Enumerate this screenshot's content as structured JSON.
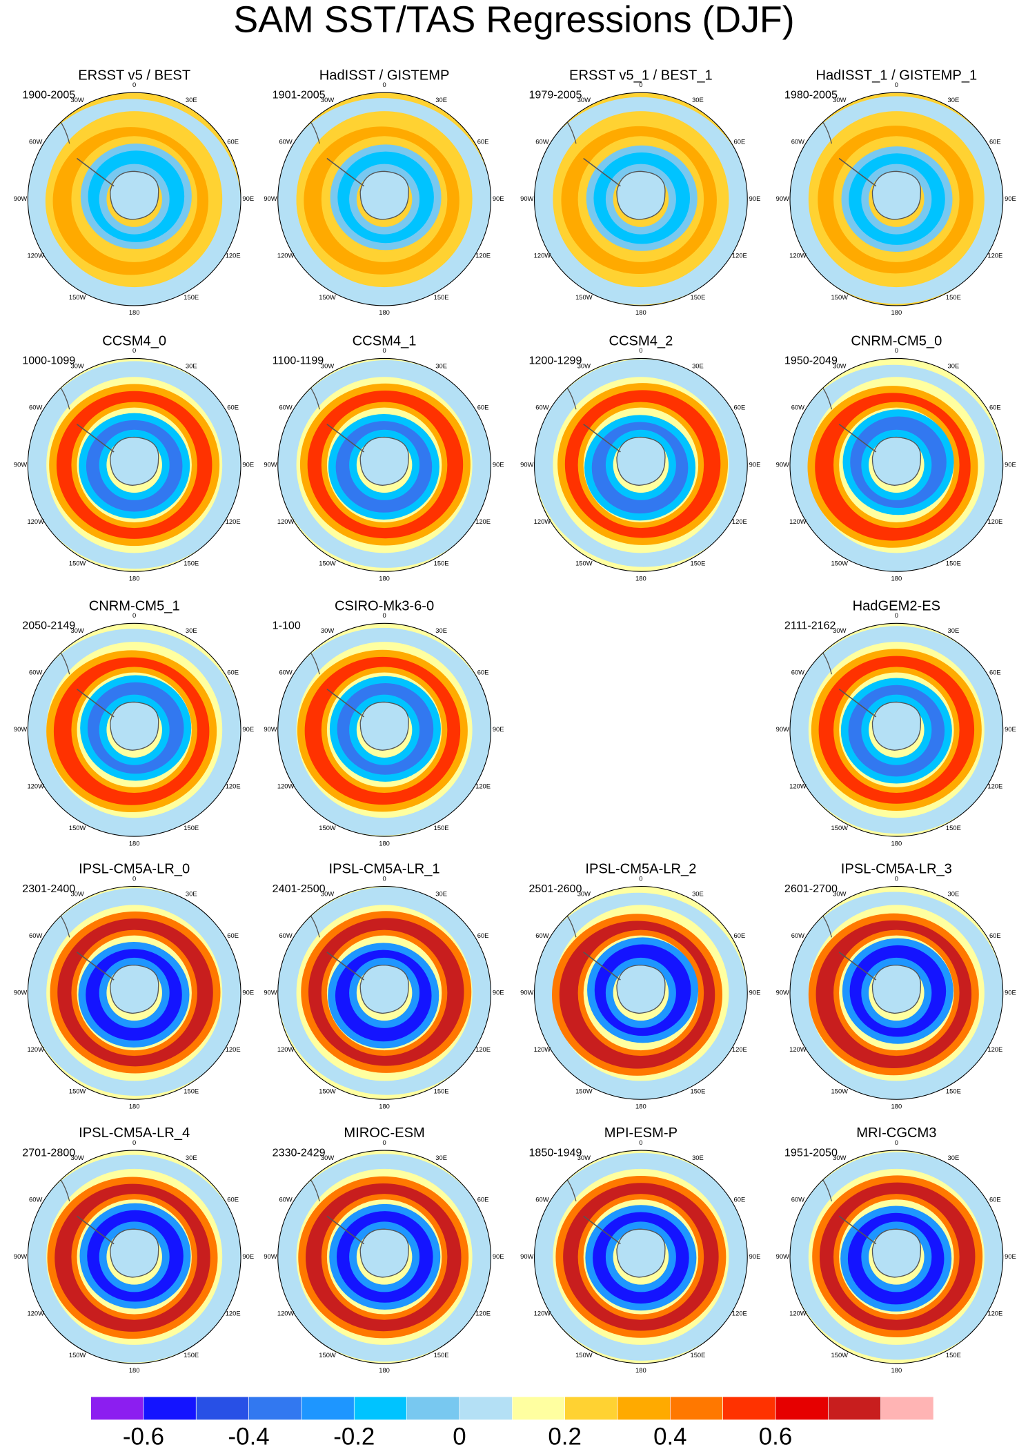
{
  "title": "SAM SST/TAS Regressions (DJF)",
  "lon_labels": [
    "0",
    "30E",
    "60E",
    "90E",
    "120E",
    "150E",
    "180",
    "150W",
    "120W",
    "90W",
    "60W",
    "30W"
  ],
  "rows": [
    [
      {
        "name": "ERSST v5 / BEST",
        "period": "1900-2005"
      },
      {
        "name": "HadISST / GISTEMP",
        "period": "1901-2005"
      },
      {
        "name": "ERSST v5_1 / BEST_1",
        "period": "1979-2005"
      },
      {
        "name": "HadISST_1 / GISTEMP_1",
        "period": "1980-2005"
      }
    ],
    [
      {
        "name": "CCSM4_0",
        "period": "1000-1099"
      },
      {
        "name": "CCSM4_1",
        "period": "1100-1199"
      },
      {
        "name": "CCSM4_2",
        "period": "1200-1299"
      },
      {
        "name": "CNRM-CM5_0",
        "period": "1950-2049"
      }
    ],
    [
      {
        "name": "CNRM-CM5_1",
        "period": "2050-2149"
      },
      {
        "name": "CSIRO-Mk3-6-0",
        "period": "1-100"
      },
      null,
      {
        "name": "HadGEM2-ES",
        "period": "2111-2162"
      }
    ],
    [
      {
        "name": "IPSL-CM5A-LR_0",
        "period": "2301-2400"
      },
      {
        "name": "IPSL-CM5A-LR_1",
        "period": "2401-2500"
      },
      {
        "name": "IPSL-CM5A-LR_2",
        "period": "2501-2600"
      },
      {
        "name": "IPSL-CM5A-LR_3",
        "period": "2601-2700"
      }
    ],
    [
      {
        "name": "IPSL-CM5A-LR_4",
        "period": "2701-2800"
      },
      {
        "name": "MIROC-ESM",
        "period": "2330-2429"
      },
      {
        "name": "MPI-ESM-P",
        "period": "1850-1949"
      },
      {
        "name": "MRI-CGCM3",
        "period": "1951-2050"
      }
    ]
  ],
  "colorbar": {
    "colors": [
      "#8c1ef0",
      "#1414ff",
      "#2850e6",
      "#3278f0",
      "#1e96ff",
      "#00c3ff",
      "#78c8f0",
      "#b4e0f5",
      "#ffffa0",
      "#ffd232",
      "#ffaa00",
      "#ff7800",
      "#ff3200",
      "#e60000",
      "#c81e1e",
      "#ffb4b4"
    ],
    "labels": [
      "-0.6",
      "-0.4",
      "-0.2",
      "0",
      "0.2",
      "0.4",
      "0.6"
    ]
  }
}
